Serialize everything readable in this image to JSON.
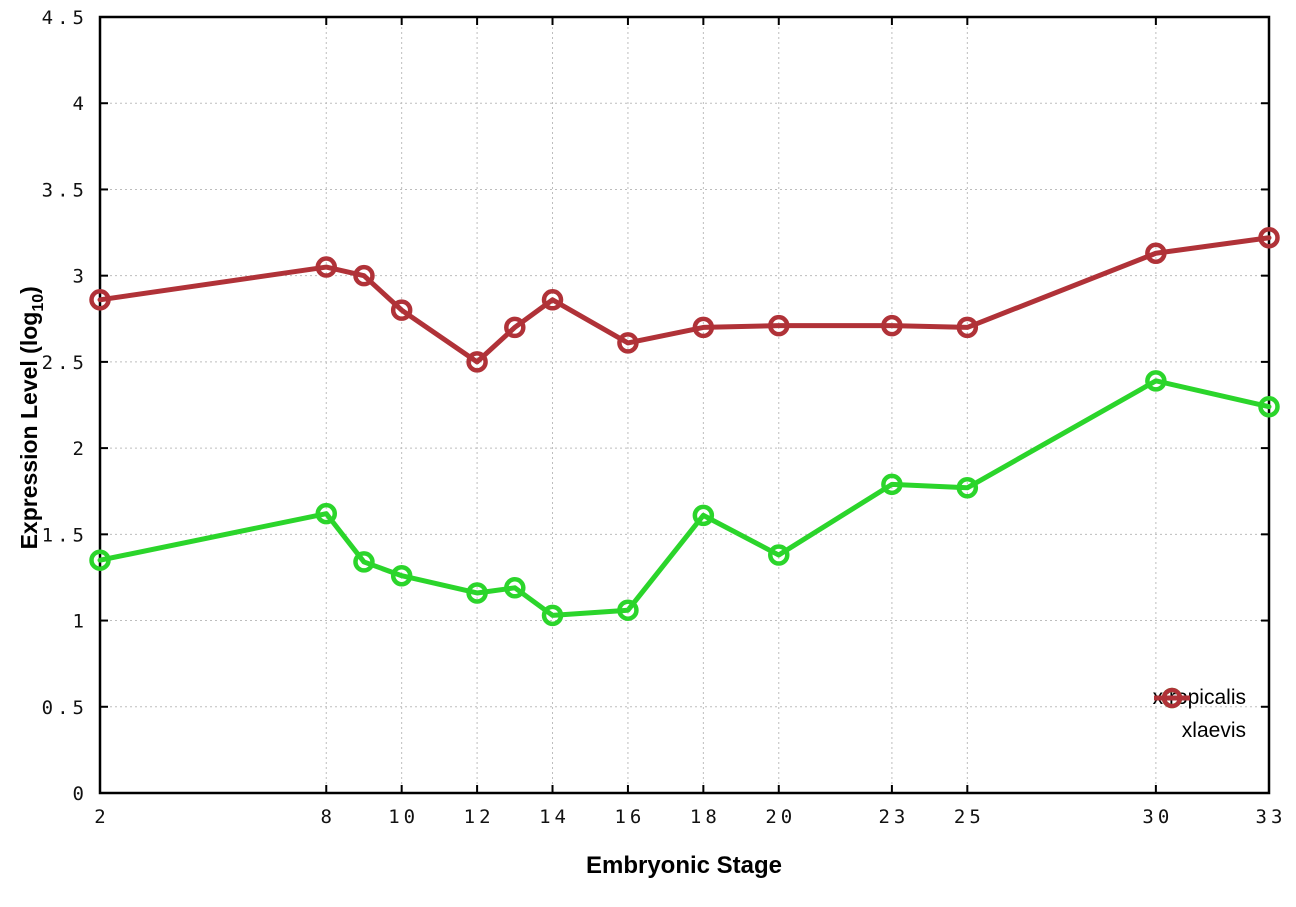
{
  "figure": {
    "xlabel": "Embryonic Stage",
    "ylabel_prefix": "Expression Level (log",
    "ylabel_sub": "10",
    "ylabel_suffix": ")"
  },
  "chart_data": {
    "type": "line",
    "title": "",
    "xlabel": "Embryonic Stage",
    "ylabel": "Expression Level (log10)",
    "x": [
      2,
      8,
      9,
      10,
      12,
      13,
      14,
      16,
      18,
      20,
      23,
      25,
      30,
      33
    ],
    "series": [
      {
        "name": "xtropicalis",
        "color": "#2bd52b",
        "values": [
          1.35,
          1.62,
          1.34,
          1.26,
          1.16,
          1.19,
          1.03,
          1.06,
          1.61,
          1.38,
          1.79,
          1.77,
          2.39,
          2.24
        ]
      },
      {
        "name": "xlaevis",
        "color": "#b03238",
        "values": [
          2.86,
          3.05,
          3.0,
          2.8,
          2.5,
          2.7,
          2.86,
          2.61,
          2.7,
          2.71,
          2.71,
          2.7,
          3.13,
          3.22
        ]
      }
    ],
    "xlim": [
      2,
      33
    ],
    "ylim": [
      0,
      4.5
    ],
    "xticks": [
      2,
      8,
      10,
      12,
      14,
      16,
      18,
      20,
      23,
      25,
      30,
      33
    ],
    "xtick_labels": [
      "2",
      "8",
      "10",
      "12",
      "14",
      "16",
      "18",
      "20",
      "23",
      "25",
      "30",
      "33"
    ],
    "yticks": [
      0,
      0.5,
      1,
      1.5,
      2,
      2.5,
      3,
      3.5,
      4,
      4.5
    ],
    "ytick_labels": [
      "0",
      "0.5",
      "1",
      "1.5",
      "2",
      "2.5",
      "3",
      "3.5",
      "4",
      "4.5"
    ],
    "grid": true,
    "legend_position": "bottom-right",
    "marker": "open-circle"
  },
  "style": {
    "axis_color": "#000000",
    "grid_color": "#bdbdbd",
    "tick_label_color": "#111111",
    "background": "#ffffff"
  }
}
